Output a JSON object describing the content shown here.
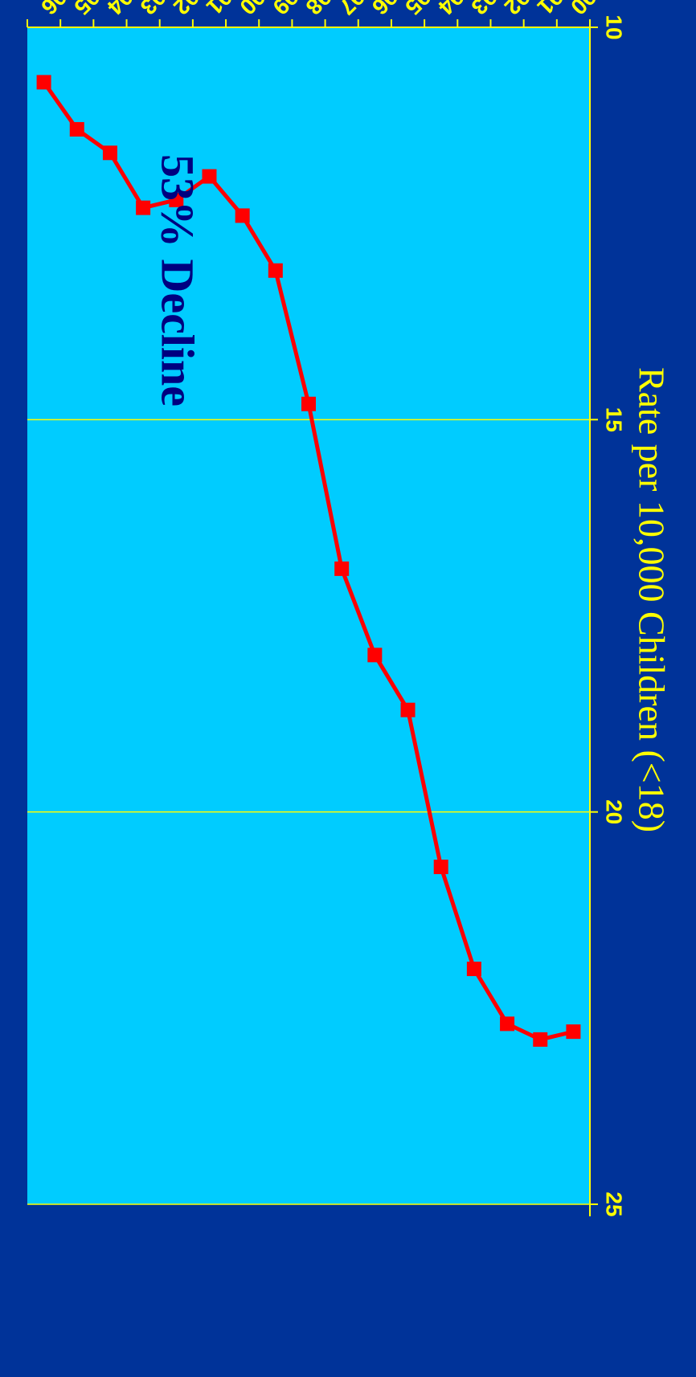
{
  "colors": {
    "background": "#003399",
    "plot_area": "#00ccff",
    "gridline": "#ffff00",
    "line": "#ff0000",
    "tick_text": "#ffff00",
    "annotation_text": "#000080",
    "axis_label_text": "#ffff00"
  },
  "chart_data": {
    "type": "line",
    "orientation": "rotated-180",
    "x": [
      "1990",
      "1991",
      "1992",
      "1993",
      "1994",
      "1995",
      "1996",
      "1997",
      "1998",
      "1999",
      "2000",
      "2001",
      "2002",
      "2003",
      "2004",
      "2005",
      "2006"
    ],
    "series": [
      {
        "values": [
          22.8,
          22.9,
          22.7,
          22.0,
          20.7,
          18.7,
          18.0,
          16.9,
          14.8,
          13.1,
          12.4,
          11.9,
          12.2,
          12.3,
          11.6,
          11.3,
          10.7
        ],
        "marker": "square"
      }
    ],
    "ylabel": "Rate per 10,000 Children (<18)",
    "ylim": [
      10,
      25
    ],
    "yticks": [
      "10",
      "15",
      "20",
      "25"
    ],
    "grid": true,
    "annotation": "53% Decline"
  }
}
